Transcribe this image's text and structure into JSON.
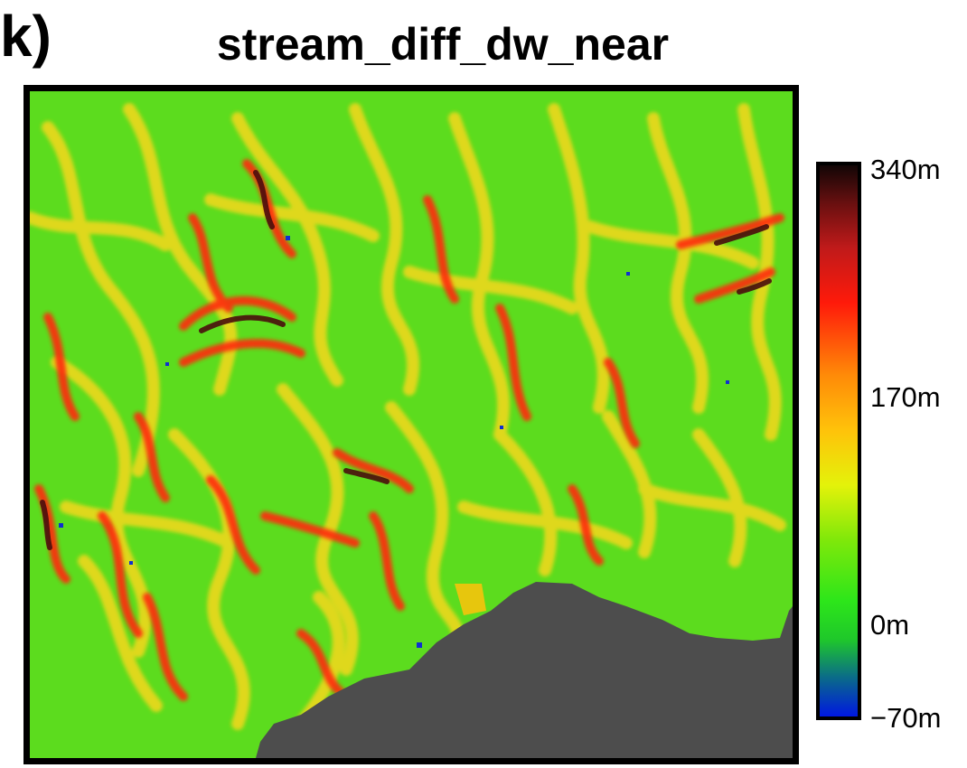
{
  "panel_label": "k)",
  "title": "stream_diff_dw_near",
  "colorbar": {
    "ticks": [
      {
        "label": "340m",
        "value": 340
      },
      {
        "label": "170m",
        "value": 170
      },
      {
        "label": "0m",
        "value": 0
      },
      {
        "label": "−70m",
        "value": -70
      }
    ],
    "min": -70,
    "max": 340
  },
  "colors": {
    "low": "#0018e0",
    "zero": "#2de61a",
    "mid": "#ffc20a",
    "high": "#ff1a0a",
    "max": "#120606",
    "masked": "#4d4d4d"
  }
}
